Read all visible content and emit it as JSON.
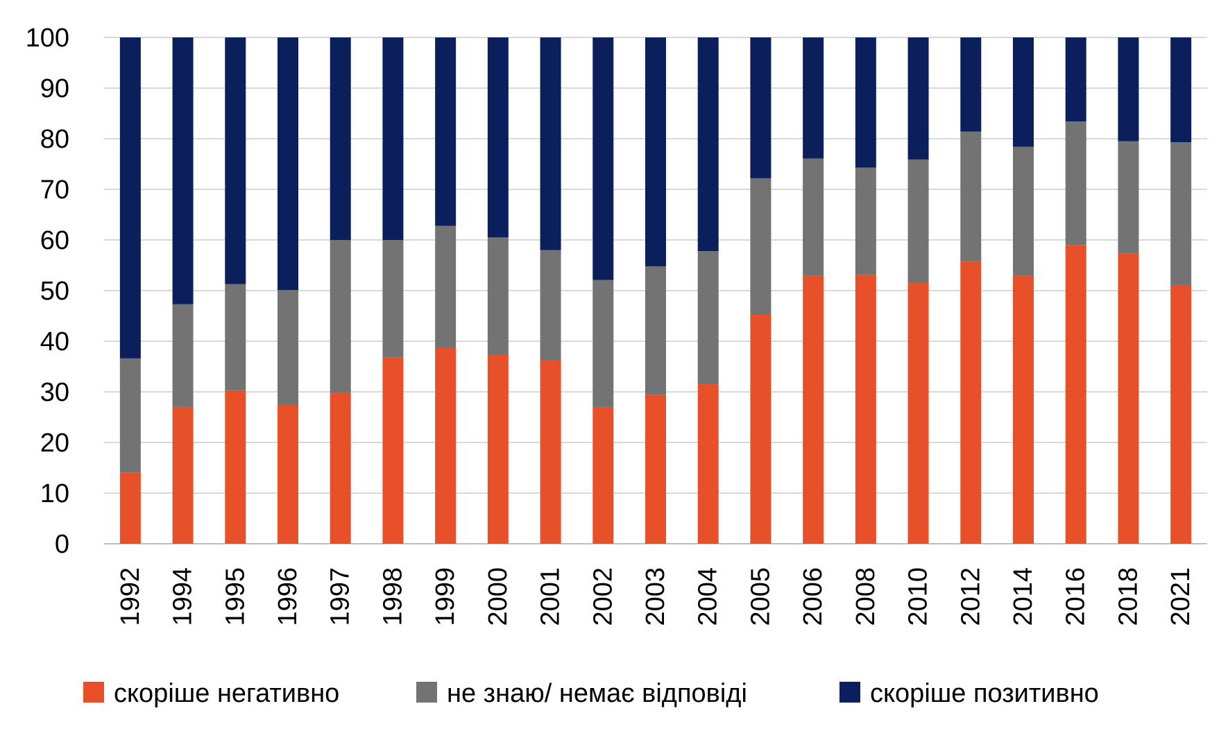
{
  "chart_data": {
    "type": "bar",
    "stacked": true,
    "title": "",
    "xlabel": "",
    "ylabel": "",
    "ylim": [
      0,
      100
    ],
    "yticks": [
      0,
      10,
      20,
      30,
      40,
      50,
      60,
      70,
      80,
      90,
      100
    ],
    "grid": "horizontal",
    "legend_position": "bottom",
    "categories": [
      "1992",
      "1994",
      "1995",
      "1996",
      "1997",
      "1998",
      "1999",
      "2000",
      "2001",
      "2002",
      "2003",
      "2004",
      "2005",
      "2006",
      "2008",
      "2010",
      "2012",
      "2014",
      "2016",
      "2018",
      "2021"
    ],
    "series": [
      {
        "name": "скоріше негативно",
        "color": "#E8502A",
        "values": [
          14,
          27,
          30.3,
          27.4,
          29.8,
          36.8,
          38.7,
          37.4,
          36.3,
          27,
          29.4,
          31.5,
          45.2,
          52.9,
          53.1,
          51.5,
          55.8,
          53,
          59,
          57.3,
          51.1
        ]
      },
      {
        "name": "не знаю/ немає відповіді",
        "color": "#737373",
        "values": [
          22.6,
          20.3,
          21,
          22.7,
          30.2,
          23.2,
          24.1,
          23.1,
          21.7,
          25.1,
          25.4,
          26.3,
          27,
          23.2,
          21.2,
          24.4,
          25.6,
          25.4,
          24.4,
          22.2,
          28.2
        ]
      },
      {
        "name": "скоріше позитивно",
        "color": "#0B1F5C",
        "values": [
          63.4,
          52.7,
          48.7,
          49.9,
          40,
          40,
          37.2,
          39.5,
          42,
          47.9,
          45.2,
          42.2,
          27.8,
          23.9,
          25.7,
          24.1,
          18.6,
          21.6,
          16.6,
          20.5,
          20.7
        ]
      }
    ]
  }
}
